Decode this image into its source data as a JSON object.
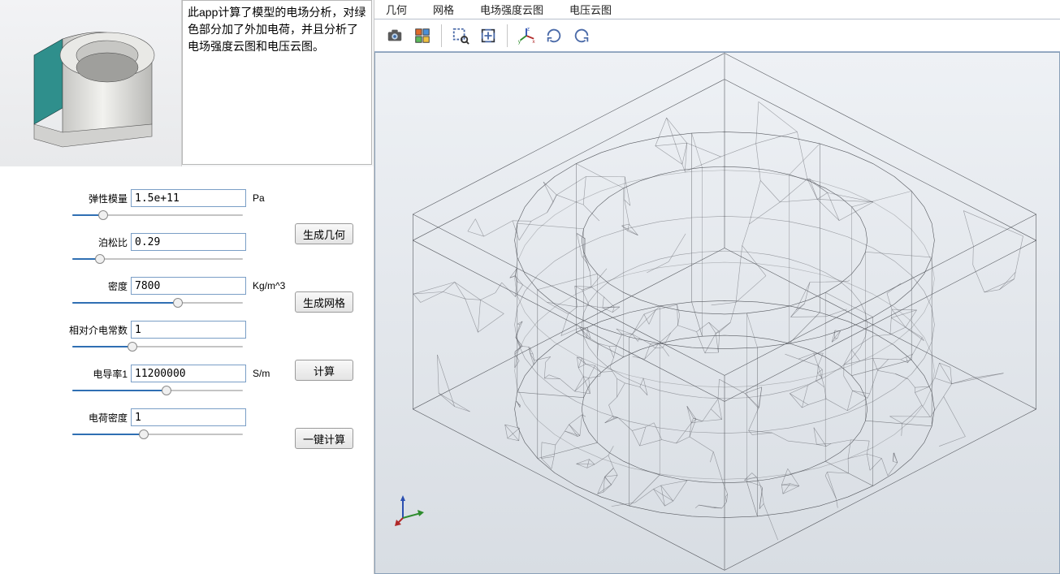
{
  "description": "此app计算了模型的电场分析，对绿色部分加了外加电荷，并且分析了电场强度云图和电压云图。",
  "params": {
    "elastic_modulus": {
      "label": "弹性模量",
      "value": "1.5e+11",
      "unit": "Pa",
      "slider_pct": 18
    },
    "poisson": {
      "label": "泊松比",
      "value": "0.29",
      "unit": "",
      "slider_pct": 16
    },
    "density": {
      "label": "密度",
      "value": "7800",
      "unit": "Kg/m^3",
      "slider_pct": 62
    },
    "rel_permittivity": {
      "label": "相对介电常数",
      "value": "1",
      "unit": "",
      "slider_pct": 35
    },
    "conductivity": {
      "label": "电导率1",
      "value": "11200000",
      "unit": "S/m",
      "slider_pct": 55
    },
    "charge_density": {
      "label": "电荷密度",
      "value": "1",
      "unit": "",
      "slider_pct": 42
    }
  },
  "buttons": {
    "gen_geom": "生成几何",
    "gen_mesh": "生成网格",
    "compute": "计算",
    "compute_all": "一键计算"
  },
  "tabs": {
    "geometry": "几何",
    "mesh": "网格",
    "efield": "电场强度云图",
    "voltage": "电压云图"
  },
  "colors": {
    "track": "#c4c4c4",
    "fill": "#2f6fb3",
    "viewport_top": "#eef1f5",
    "viewport_bot": "#d8dde3",
    "mesh_line": "#575a60",
    "model_face": "#d8d8d6",
    "model_face_dark": "#bfbfbd",
    "model_accent": "#2f8f8c"
  },
  "axis": {
    "x": "#b02828",
    "y": "#2e8c2e",
    "z": "#2b4fb0"
  }
}
